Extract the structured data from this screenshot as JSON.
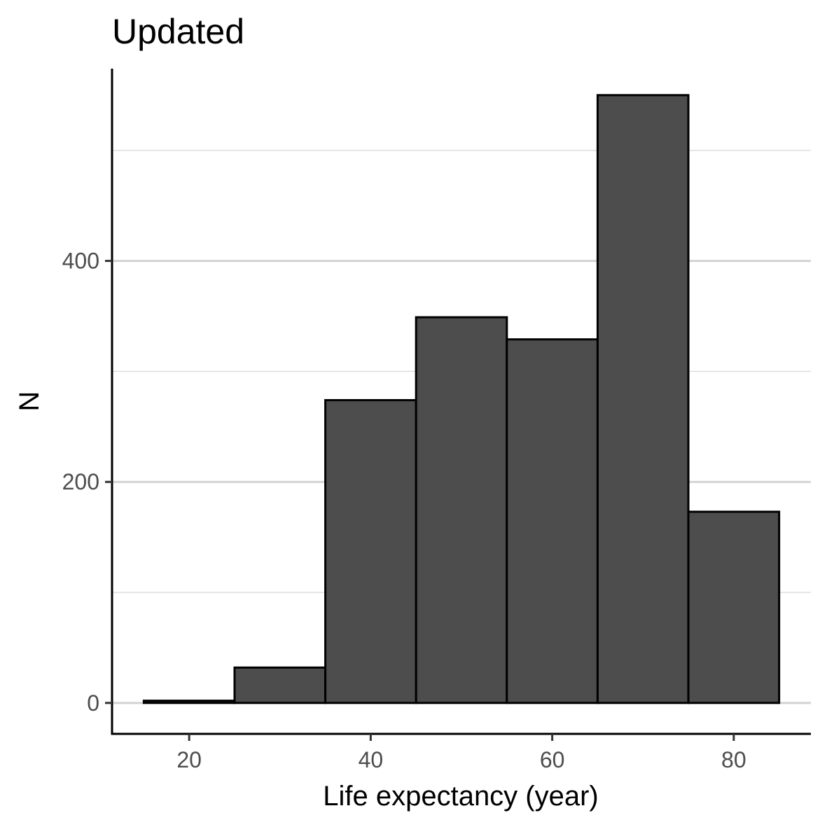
{
  "chart_data": {
    "type": "bar",
    "title": "Updated",
    "xlabel": "Life expectancy (year)",
    "ylabel": "N",
    "bins": [
      {
        "x0": 15,
        "x1": 25,
        "count": 2
      },
      {
        "x0": 25,
        "x1": 35,
        "count": 32
      },
      {
        "x0": 35,
        "x1": 45,
        "count": 274
      },
      {
        "x0": 45,
        "x1": 55,
        "count": 349
      },
      {
        "x0": 55,
        "x1": 65,
        "count": 329
      },
      {
        "x0": 65,
        "x1": 75,
        "count": 550
      },
      {
        "x0": 75,
        "x1": 85,
        "count": 173
      }
    ],
    "xlim": [
      11.5,
      88.5
    ],
    "ylim": [
      -28,
      574
    ],
    "xticks": [
      20,
      40,
      60,
      80
    ],
    "xtick_labels": [
      "20",
      "40",
      "60",
      "80"
    ],
    "yticks": [
      0,
      200,
      400
    ],
    "ytick_labels": [
      "0",
      "200",
      "400"
    ],
    "y_minor_gridlines": [
      100,
      300,
      500
    ],
    "grid": "horizontal",
    "legend": "none",
    "colors": {
      "bar_fill": "#4d4d4d",
      "bar_stroke": "#000000",
      "grid_major": "#d3d3d3",
      "grid_minor": "#dedede",
      "axis_line": "#000000",
      "tick_label": "#4d4d4d"
    }
  }
}
